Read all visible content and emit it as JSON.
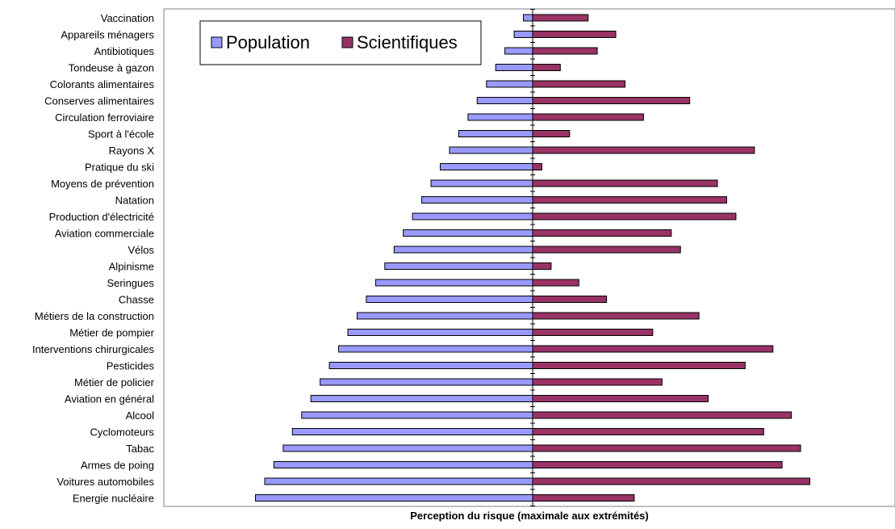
{
  "chart_data": {
    "type": "bar",
    "orientation": "horizontal-diverging",
    "title": "",
    "xlabel": "Perception du risque (maximale aux extrémités)",
    "ylabel": "",
    "xlim": [
      -30,
      30
    ],
    "categories": [
      "Vaccination",
      "Appareils ménagers",
      "Antibiotiques",
      "Tondeuse à gazon",
      "Colorants alimentaires",
      "Conserves alimentaires",
      "Circulation ferroviaire",
      "Sport à l'école",
      "Rayons X",
      "Pratique du ski",
      "Moyens de prévention",
      "Natation",
      "Production d'électricité",
      "Aviation commerciale",
      "Vélos",
      "Alpinisme",
      "Seringues",
      "Chasse",
      "Métiers de la construction",
      "Métier de pompier",
      "Interventions chirurgicales",
      "Pesticides",
      "Métier de policier",
      "Aviation en général",
      "Alcool",
      "Cyclomoteurs",
      "Tabac",
      "Armes de poing",
      "Voitures automobiles",
      "Energie nucléaire"
    ],
    "series": [
      {
        "name": "Population",
        "color": "#9999ff",
        "direction": "left",
        "values": [
          1,
          2,
          3,
          4,
          5,
          6,
          7,
          8,
          9,
          10,
          11,
          12,
          13,
          14,
          15,
          16,
          17,
          18,
          19,
          20,
          21,
          22,
          23,
          24,
          25,
          26,
          27,
          28,
          29,
          30
        ]
      },
      {
        "name": "Scientifiques",
        "color": "#993366",
        "direction": "right",
        "values": [
          6,
          9,
          7,
          3,
          10,
          17,
          12,
          4,
          24,
          1,
          20,
          21,
          22,
          15,
          16,
          2,
          5,
          8,
          18,
          13,
          26,
          23,
          14,
          19,
          28,
          25,
          29,
          27,
          30,
          11
        ]
      }
    ],
    "legend_position": "top-left",
    "grid": false
  }
}
